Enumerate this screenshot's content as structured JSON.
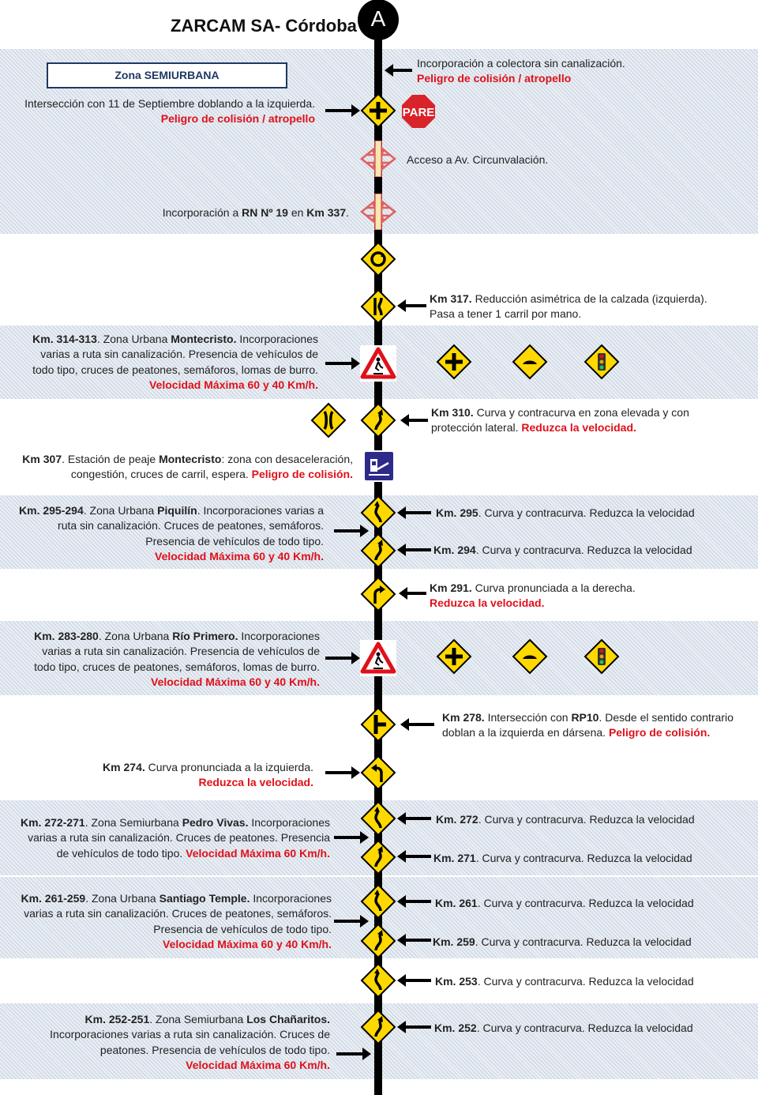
{
  "header": {
    "title": "ZARCAM SA- Córdoba",
    "start_marker": "A"
  },
  "zone_label": "Zona SEMIURBANA",
  "colors": {
    "warning_red": "#e0101a",
    "sign_yellow": "#ffd800",
    "road": "#000000",
    "zone_border": "#1f3864"
  },
  "entries": {
    "r1": [
      {
        "t": "Incorporación a colectora sin canalización.\n"
      },
      {
        "t": "Peligro de colisión / atropello",
        "s": "r"
      }
    ],
    "l1": [
      {
        "t": "Intersección con 11 de Septiembre doblando a la izquierda.\n"
      },
      {
        "t": "Peligro de colisión / atropello",
        "s": "r"
      }
    ],
    "r2": [
      {
        "t": "Acceso a Av. Circunvalación."
      }
    ],
    "l2": [
      {
        "t": "Incorporación a "
      },
      {
        "t": "RN Nº 19",
        "s": "b"
      },
      {
        "t": " en "
      },
      {
        "t": "Km 337",
        "s": "b"
      },
      {
        "t": "."
      }
    ],
    "r3": [
      {
        "t": "Km 317.",
        "s": "b"
      },
      {
        "t": " Reducción asimétrica de la calzada (izquierda).\nPasa a tener 1 carril por mano."
      }
    ],
    "l3": [
      {
        "t": "Km. 314-313",
        "s": "b"
      },
      {
        "t": ". Zona Urbana "
      },
      {
        "t": "Montecristo.",
        "s": "b"
      },
      {
        "t": " Incorporaciones\nvarias a ruta sin canalización. Presencia de vehículos de\ntodo tipo, cruces de peatones, semáforos, lomas de burro.\n"
      },
      {
        "t": "Velocidad Máxima 60 y 40 Km/h.",
        "s": "r"
      }
    ],
    "r4": [
      {
        "t": "Km 310.",
        "s": "b"
      },
      {
        "t": " Curva y contracurva en zona elevada y con\nprotección lateral. "
      },
      {
        "t": "Reduzca la velocidad.",
        "s": "r"
      }
    ],
    "l4": [
      {
        "t": "Km 307",
        "s": "b"
      },
      {
        "t": ". Estación de peaje "
      },
      {
        "t": "Montecristo",
        "s": "b"
      },
      {
        "t": ": zona con desaceleración,\ncongestión, cruces de carril, espera. "
      },
      {
        "t": "Peligro de colisión.",
        "s": "r"
      }
    ],
    "l5": [
      {
        "t": "Km. 295-294",
        "s": "b"
      },
      {
        "t": ". Zona Urbana "
      },
      {
        "t": "Piquilín",
        "s": "b"
      },
      {
        "t": ". Incorporaciones varias a\nruta sin canalización. Cruces de peatones, semáforos.\nPresencia de vehículos de todo tipo.\n"
      },
      {
        "t": "Velocidad Máxima 60 y 40 Km/h.",
        "s": "r"
      }
    ],
    "r5": [
      {
        "t": "Km. 295",
        "s": "b"
      },
      {
        "t": ". Curva y contracurva. Reduzca la velocidad"
      }
    ],
    "r6": [
      {
        "t": "Km. 294",
        "s": "b"
      },
      {
        "t": ". Curva y contracurva. Reduzca la velocidad"
      }
    ],
    "r7": [
      {
        "t": "Km 291.",
        "s": "b"
      },
      {
        "t": " Curva pronunciada a la derecha.\n"
      },
      {
        "t": "Reduzca la velocidad.",
        "s": "r"
      }
    ],
    "l6": [
      {
        "t": "Km. 283-280",
        "s": "b"
      },
      {
        "t": ". Zona Urbana "
      },
      {
        "t": "Río Primero.",
        "s": "b"
      },
      {
        "t": " Incorporaciones\nvarias a ruta sin canalización. Presencia de vehículos de\ntodo tipo, cruces de peatones, semáforos, lomas de burro.\n"
      },
      {
        "t": "Velocidad Máxima 60 y 40 Km/h.",
        "s": "r"
      }
    ],
    "r8": [
      {
        "t": "Km 278.",
        "s": "b"
      },
      {
        "t": " Intersección con "
      },
      {
        "t": "RP10",
        "s": "b"
      },
      {
        "t": ". Desde el sentido contrario\ndoblan a la izquierda en dársena. "
      },
      {
        "t": "Peligro de colisión.",
        "s": "r"
      }
    ],
    "l7": [
      {
        "t": "Km 274.",
        "s": "b"
      },
      {
        "t": " Curva pronunciada a la izquierda.\n"
      },
      {
        "t": "Reduzca la velocidad.",
        "s": "r"
      }
    ],
    "l8": [
      {
        "t": "Km. 272-271",
        "s": "b"
      },
      {
        "t": ". Zona Semiurbana "
      },
      {
        "t": "Pedro Vivas.",
        "s": "b"
      },
      {
        "t": " Incorporaciones\nvarias a ruta sin canalización. Cruces de peatones. Presencia\nde vehículos de todo tipo. "
      },
      {
        "t": "Velocidad Máxima 60 Km/h.",
        "s": "r"
      }
    ],
    "r9": [
      {
        "t": "Km. 272",
        "s": "b"
      },
      {
        "t": ". Curva y contracurva. Reduzca la velocidad"
      }
    ],
    "r10": [
      {
        "t": "Km. 271",
        "s": "b"
      },
      {
        "t": ". Curva y contracurva. Reduzca la velocidad"
      }
    ],
    "l9": [
      {
        "t": "Km. 261-259",
        "s": "b"
      },
      {
        "t": ". Zona Urbana "
      },
      {
        "t": "Santiago Temple.",
        "s": "b"
      },
      {
        "t": " Incorporaciones\nvarias a ruta sin canalización. Cruces de peatones, semáforos.\nPresencia de vehículos de todo tipo.\n"
      },
      {
        "t": "Velocidad Máxima 60 y 40 Km/h.",
        "s": "r"
      }
    ],
    "r11": [
      {
        "t": "Km. 261",
        "s": "b"
      },
      {
        "t": ". Curva y contracurva. Reduzca la velocidad"
      }
    ],
    "r12": [
      {
        "t": "Km. 259",
        "s": "b"
      },
      {
        "t": ". Curva y contracurva. Reduzca la velocidad"
      }
    ],
    "r13": [
      {
        "t": "Km. 253",
        "s": "b"
      },
      {
        "t": ". Curva y contracurva. Reduzca la velocidad"
      }
    ],
    "l10": [
      {
        "t": "Km. 252-251",
        "s": "b"
      },
      {
        "t": ". Zona Semiurbana "
      },
      {
        "t": "Los Chañaritos.",
        "s": "b"
      },
      {
        "t": "\nIncorporaciones varias a ruta sin canalización. Cruces de\npeatones. Presencia de vehículos de todo tipo.\n"
      },
      {
        "t": "Velocidad Máxima 60 Km/h.",
        "s": "r"
      }
    ],
    "r14": [
      {
        "t": "Km. 252",
        "s": "b"
      },
      {
        "t": ". Curva y contracurva. Reduzca la velocidad"
      }
    ]
  },
  "signs": {
    "pare_text": "PARE",
    "icons": [
      "crossroad-sign-icon",
      "stop-sign-icon",
      "interchange-icon",
      "roundabout-sign-icon",
      "lane-narrowing-sign-icon",
      "pedestrian-crossing-sign-icon",
      "speed-bump-sign-icon",
      "traffic-light-sign-icon",
      "narrow-bridge-sign-icon",
      "curve-sign-icon",
      "toll-station-sign-icon",
      "sharp-curve-sign-icon",
      "t-intersection-sign-icon"
    ]
  }
}
